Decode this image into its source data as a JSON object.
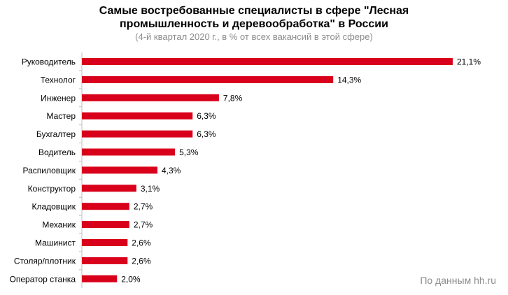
{
  "header": {
    "title": "Самые востребованные специалисты в сфере \"Лесная промышленность и деревообработка\" в России",
    "subtitle": "(4-й квартал 2020 г., в % от всех вакансий в этой сфере)"
  },
  "source": "По данным hh.ru",
  "colors": {
    "bar": "#d9001b",
    "axis": "#bfbfbf"
  },
  "chart_data": {
    "type": "bar",
    "orientation": "horizontal",
    "title": "Самые востребованные специалисты в сфере \"Лесная промышленность и деревообработка\" в России",
    "subtitle": "(4-й квартал 2020 г., в % от всех вакансий в этой сфере)",
    "categories": [
      "Руководитель",
      "Технолог",
      "Инженер",
      "Мастер",
      "Бухгалтер",
      "Водитель",
      "Распиловщик",
      "Конструктор",
      "Кладовщик",
      "Механик",
      "Машинист",
      "Столяр/плотник",
      "Оператор станка"
    ],
    "values": [
      21.1,
      14.3,
      7.8,
      6.3,
      6.3,
      5.3,
      4.3,
      3.1,
      2.7,
      2.7,
      2.6,
      2.6,
      2.0
    ],
    "value_labels": [
      "21,1%",
      "14,3%",
      "7,8%",
      "6,3%",
      "6,3%",
      "5,3%",
      "4,3%",
      "3,1%",
      "2,7%",
      "2,7%",
      "2,6%",
      "2,6%",
      "2,0%"
    ],
    "xlim": [
      0,
      21.1
    ],
    "grid": false,
    "legend": "none"
  }
}
